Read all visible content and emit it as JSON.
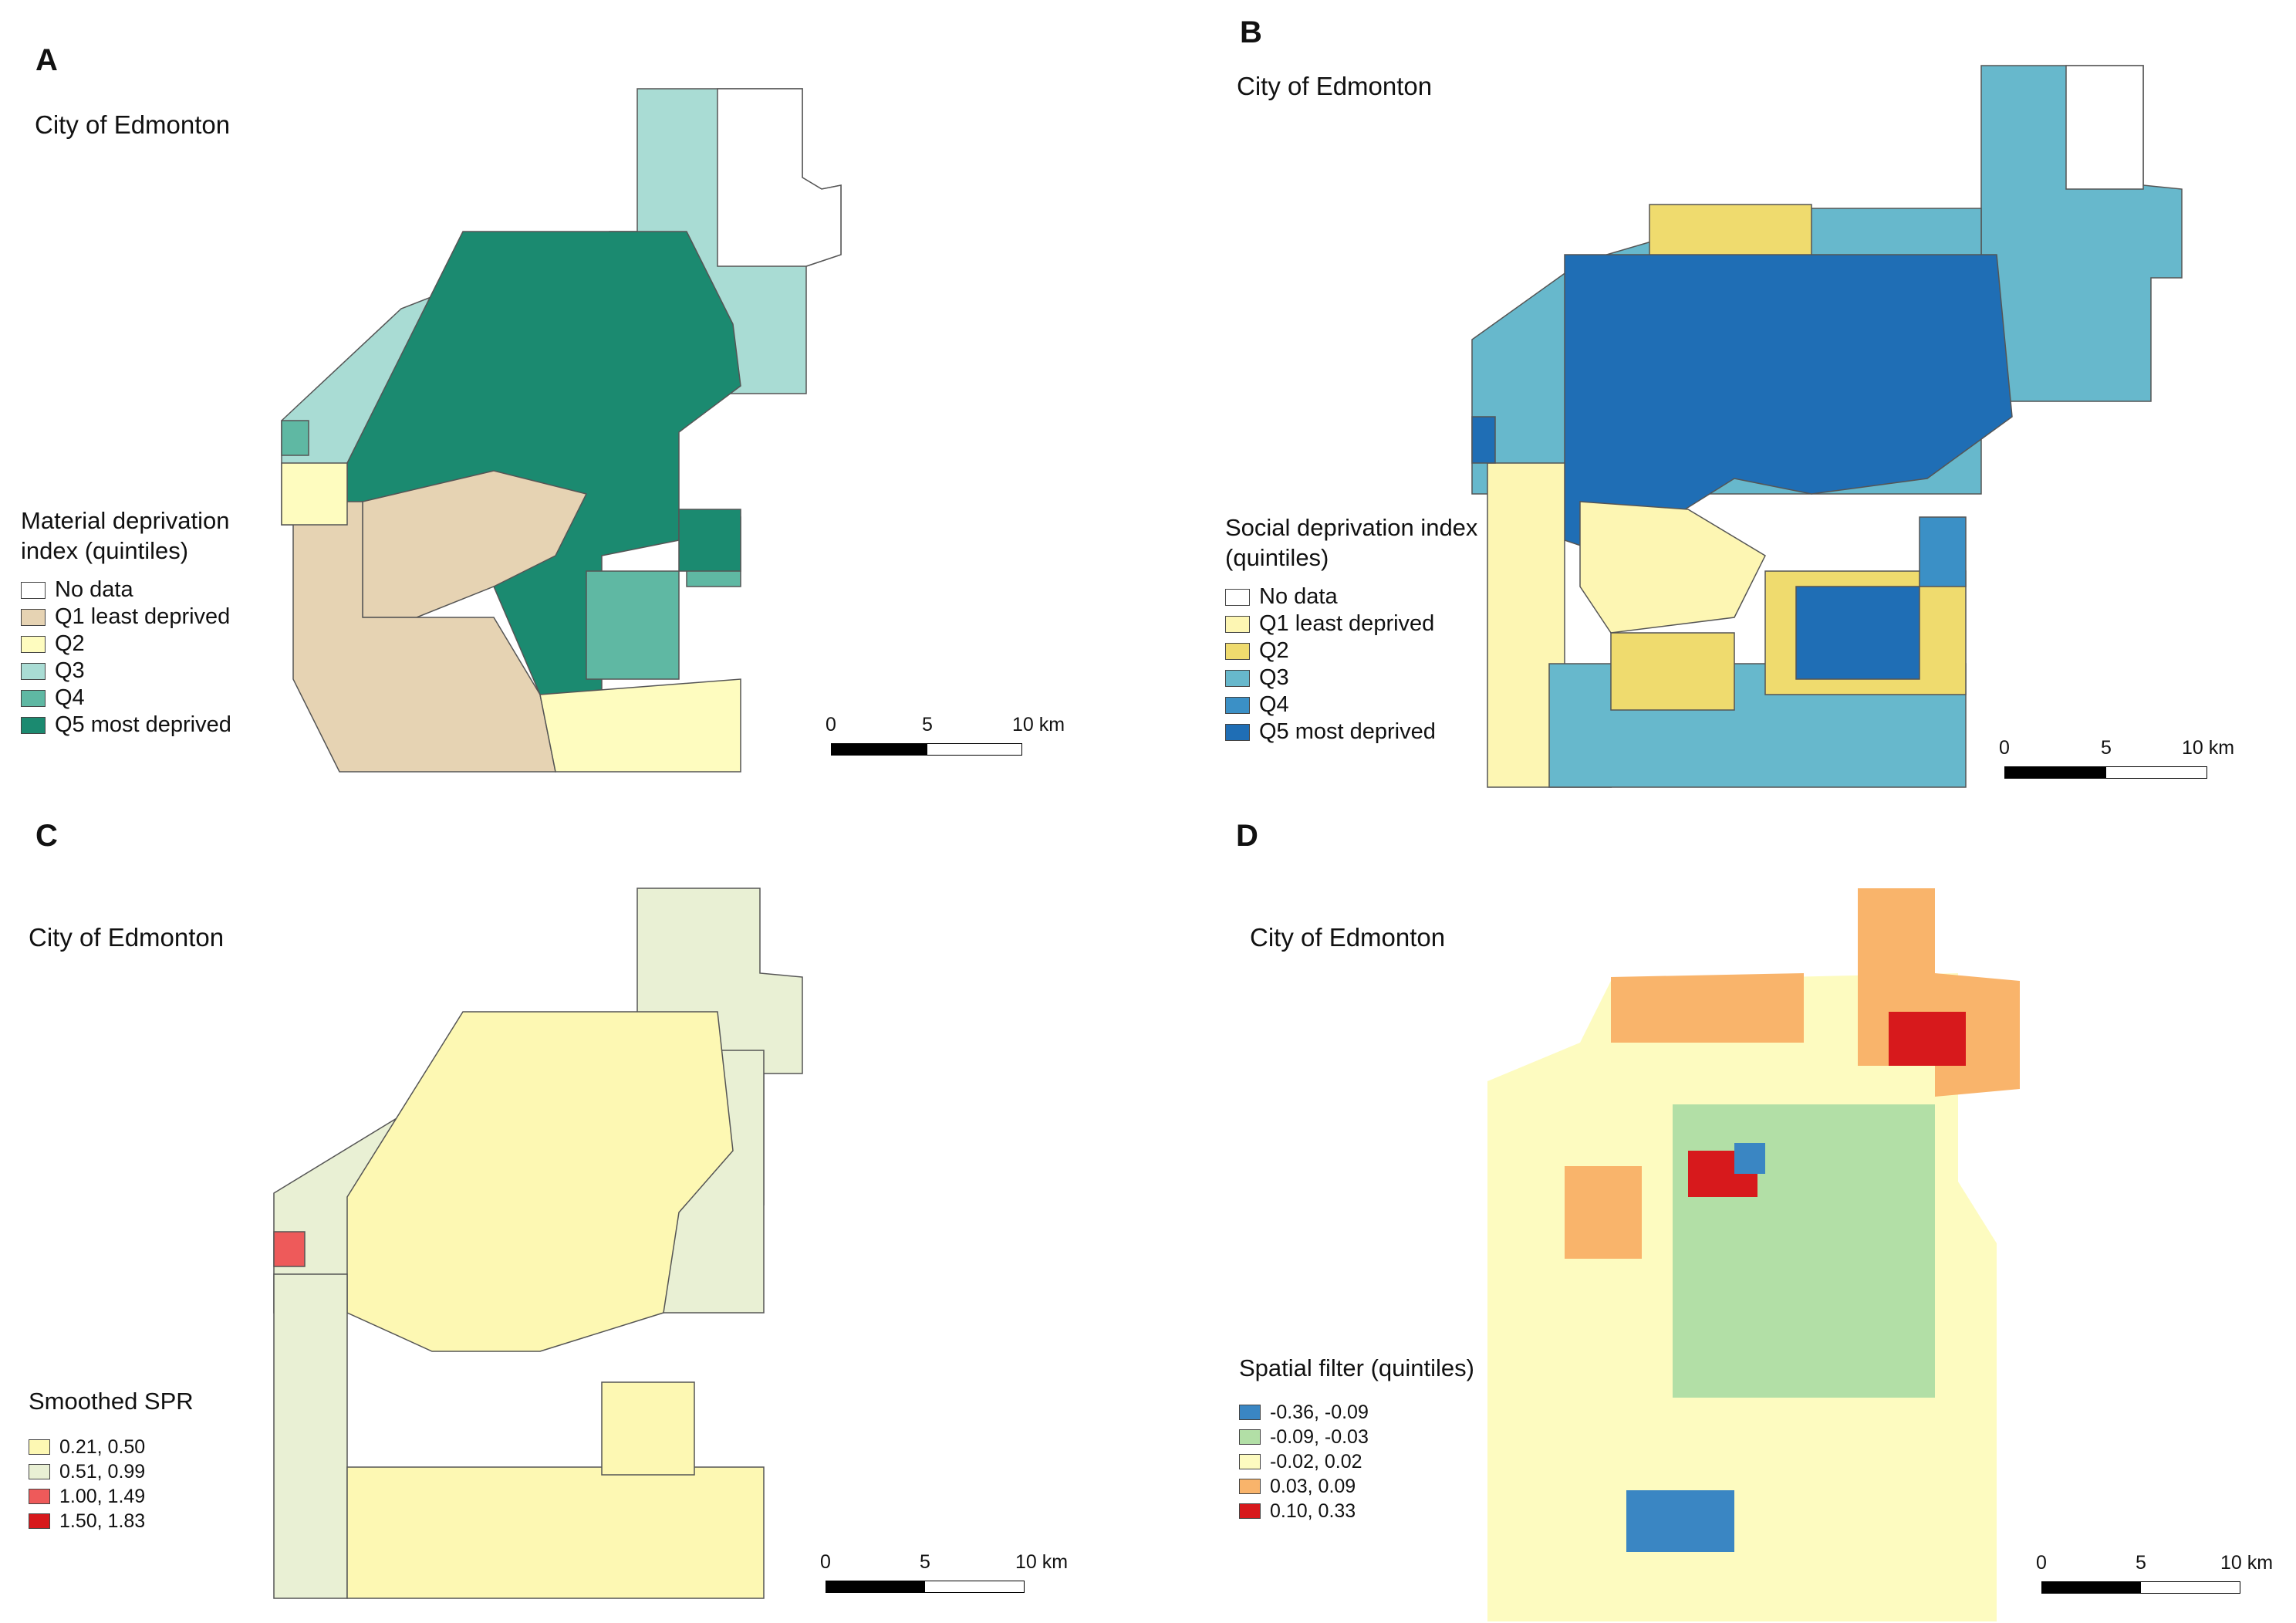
{
  "city_title": "City of Edmonton",
  "scale_bar": {
    "labels": [
      "0",
      "5",
      "10 km"
    ]
  },
  "panels": [
    {
      "id": "A",
      "letter": "A",
      "legend_title": "Material deprivation index (quintiles)",
      "legend": [
        {
          "label": "No data",
          "color": "#ffffff"
        },
        {
          "label": "Q1 least deprived",
          "color": "#e6d3b3"
        },
        {
          "label": "Q2",
          "color": "#fefcbf"
        },
        {
          "label": "Q3",
          "color": "#a9dcd4"
        },
        {
          "label": "Q4",
          "color": "#5fb8a3"
        },
        {
          "label": "Q5 most deprived",
          "color": "#1b8a70"
        }
      ]
    },
    {
      "id": "B",
      "letter": "B",
      "legend_title": "Social deprivation index (quintiles)",
      "legend": [
        {
          "label": "No data",
          "color": "#ffffff"
        },
        {
          "label": "Q1 least deprived",
          "color": "#fdf6b3"
        },
        {
          "label": "Q2",
          "color": "#efdb6e"
        },
        {
          "label": "Q3",
          "color": "#67b8cc"
        },
        {
          "label": "Q4",
          "color": "#3b90c6"
        },
        {
          "label": "Q5 most deprived",
          "color": "#1f6eb5"
        }
      ]
    },
    {
      "id": "C",
      "letter": "C",
      "legend_title": "Smoothed SPR",
      "legend": [
        {
          "label": "0.21, 0.50",
          "color": "#fdf8b3"
        },
        {
          "label": "0.51, 0.99",
          "color": "#e9f0d4"
        },
        {
          "label": "1.00, 1.49",
          "color": "#ee5a5a"
        },
        {
          "label": "1.50, 1.83",
          "color": "#d7191c"
        }
      ]
    },
    {
      "id": "D",
      "letter": "D",
      "legend_title": "Spatial filter (quintiles)",
      "legend": [
        {
          "label": "-0.36, -0.09",
          "color": "#3a86c3"
        },
        {
          "label": "-0.09, -0.03",
          "color": "#b2dfa6"
        },
        {
          "label": "-0.02, 0.02",
          "color": "#fdfbc0"
        },
        {
          "label": "0.03, 0.09",
          "color": "#f9b46b"
        },
        {
          "label": "0.10, 0.33",
          "color": "#d7191c"
        }
      ]
    }
  ]
}
